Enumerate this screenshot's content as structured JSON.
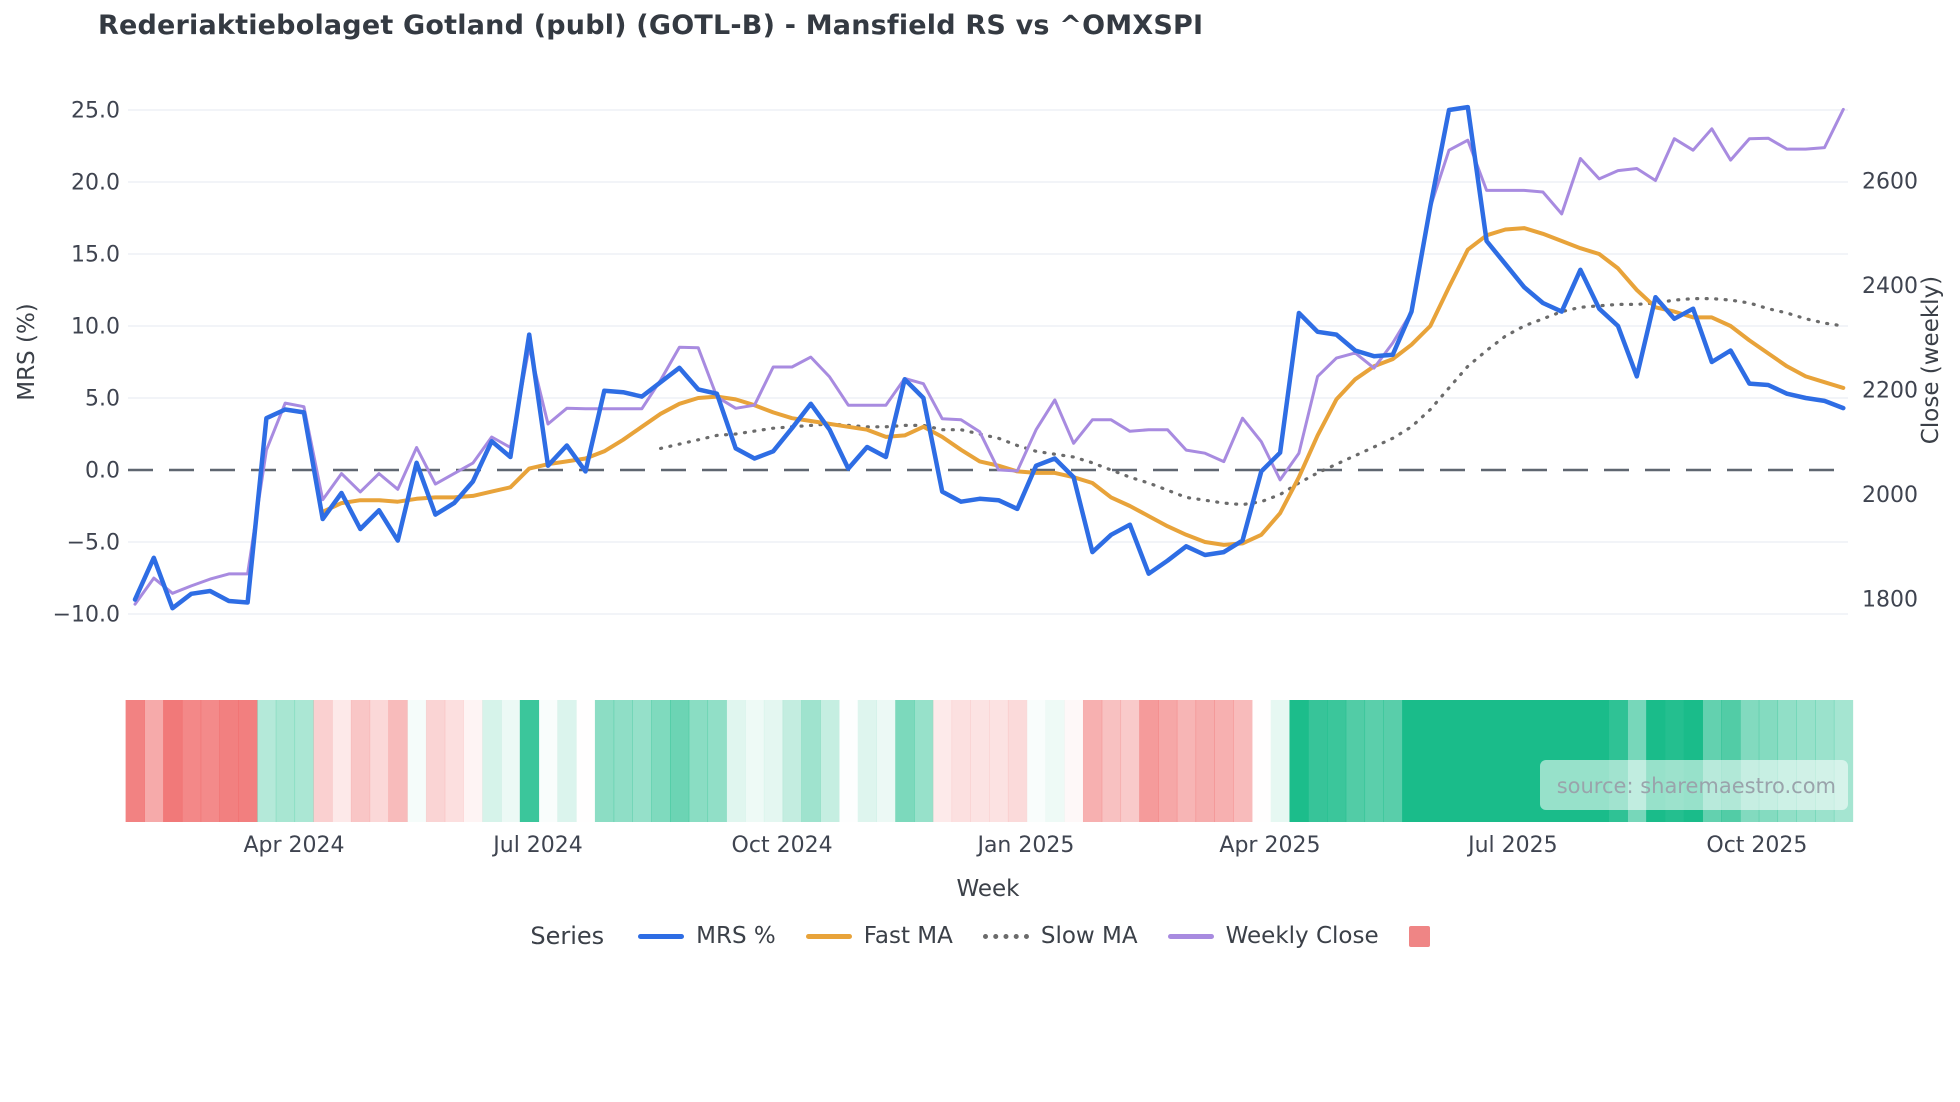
{
  "title": "Rederiaktiebolaget Gotland (publ) (GOTL-B) - Mansfield RS vs ^OMXSPI",
  "xlabel": "Week",
  "watermark": "source: sharemaestro.com",
  "legend": {
    "title": "Series",
    "items": [
      {
        "label": "MRS %",
        "swatch": "line",
        "color": "#2e6de4"
      },
      {
        "label": "Fast MA",
        "swatch": "line",
        "color": "#e8a33a"
      },
      {
        "label": "Slow MA",
        "swatch": "dotted",
        "color": "#6b6b6b"
      },
      {
        "label": "Weekly Close",
        "swatch": "line",
        "color": "#a88be0"
      },
      {
        "label": "",
        "swatch": "patch",
        "color": "#ef8585"
      }
    ]
  },
  "chart_data": {
    "type": "line",
    "title": "Rederiaktiebolaget Gotland (publ) (GOTL-B) - Mansfield RS vs ^OMXSPI",
    "xlabel": "Week",
    "x_tick_labels": [
      "Apr 2024",
      "Jul 2024",
      "Oct 2024",
      "Jan 2025",
      "Apr 2025",
      "Jul 2025",
      "Oct 2025"
    ],
    "x_tick_week_positions": [
      8.47,
      21.47,
      34.47,
      47.46,
      60.46,
      73.4,
      86.4
    ],
    "n_weeks": 92,
    "grid": true,
    "zero_line": {
      "value": 0.0,
      "style": "dashed",
      "color": "#5f6670"
    },
    "yaxis_left": {
      "label": "MRS (%)",
      "tick_values": [
        25,
        20,
        15,
        10,
        5,
        0,
        -5,
        -10
      ],
      "tick_labels": [
        "25.0",
        "20.0",
        "15.0",
        "10.0",
        "5.0",
        "0.0",
        "−5.0",
        "−10.0"
      ],
      "range": [
        -12.0,
        27.0
      ]
    },
    "yaxis_right": {
      "label": "Close (weekly)",
      "tick_values": [
        2600,
        2400,
        2200,
        2000,
        1800
      ],
      "tick_labels": [
        "2600",
        "2400",
        "2200",
        "2000",
        "1800"
      ],
      "range": [
        1655,
        2900
      ]
    },
    "series": [
      {
        "name": "MRS %",
        "axis": "left",
        "color": "#2e6de4",
        "style": "solid",
        "width": 4.5,
        "values": [
          -9.0,
          -6.1,
          -9.6,
          -8.6,
          -8.4,
          -9.1,
          -9.2,
          3.6,
          4.2,
          4.0,
          -3.4,
          -1.6,
          -4.1,
          -2.8,
          -4.9,
          0.5,
          -3.1,
          -2.3,
          -0.8,
          2.0,
          0.9,
          9.4,
          0.3,
          1.7,
          -0.1,
          5.5,
          5.4,
          5.1,
          6.1,
          7.1,
          5.6,
          5.3,
          1.5,
          0.8,
          1.3,
          2.9,
          4.6,
          2.8,
          0.1,
          1.6,
          0.9,
          6.3,
          5.0,
          -1.5,
          -2.2,
          -2.0,
          -2.1,
          -2.7,
          0.3,
          0.8,
          -0.5,
          -5.7,
          -4.5,
          -3.8,
          -7.2,
          -6.3,
          -5.3,
          -5.9,
          -5.7,
          -4.9,
          -0.1,
          1.2,
          10.9,
          9.6,
          9.4,
          8.3,
          7.9,
          8.0,
          11.0,
          18.3,
          25.0,
          25.2,
          15.9,
          14.3,
          12.7,
          11.6,
          11.0,
          13.9,
          11.2,
          10.0,
          6.5,
          12.0,
          10.5,
          11.2,
          7.5,
          8.3,
          6.0,
          5.9,
          5.3,
          5.0,
          4.8,
          4.3
        ]
      },
      {
        "name": "Fast MA",
        "axis": "left",
        "color": "#e8a33a",
        "style": "solid",
        "width": 4,
        "values": [
          null,
          null,
          null,
          null,
          null,
          null,
          null,
          null,
          null,
          null,
          -2.9,
          -2.3,
          -2.1,
          -2.1,
          -2.2,
          -2.0,
          -1.9,
          -1.9,
          -1.8,
          -1.5,
          -1.2,
          0.1,
          0.4,
          0.6,
          0.8,
          1.3,
          2.1,
          3.0,
          3.9,
          4.6,
          5.0,
          5.1,
          4.9,
          4.5,
          4.0,
          3.6,
          3.4,
          3.2,
          3.0,
          2.8,
          2.3,
          2.4,
          3.0,
          2.3,
          1.4,
          0.6,
          0.3,
          -0.1,
          -0.2,
          -0.2,
          -0.5,
          -0.9,
          -1.9,
          -2.5,
          -3.2,
          -3.9,
          -4.5,
          -5.0,
          -5.2,
          -5.1,
          -4.5,
          -3.0,
          -0.5,
          2.4,
          4.9,
          6.3,
          7.2,
          7.7,
          8.7,
          10.0,
          12.7,
          15.3,
          16.3,
          16.7,
          16.8,
          16.4,
          15.9,
          15.4,
          15.0,
          14.0,
          12.5,
          11.3,
          11.0,
          10.6,
          10.6,
          10.0,
          9.0,
          8.1,
          7.2,
          6.5,
          6.1,
          5.7
        ]
      },
      {
        "name": "Slow MA",
        "axis": "left",
        "color": "#6b6b6b",
        "style": "dotted",
        "width": 3.2,
        "values": [
          null,
          null,
          null,
          null,
          null,
          null,
          null,
          null,
          null,
          null,
          null,
          null,
          null,
          null,
          null,
          null,
          null,
          null,
          null,
          null,
          null,
          null,
          null,
          null,
          null,
          null,
          null,
          null,
          1.5,
          1.8,
          2.1,
          2.4,
          2.5,
          2.7,
          2.9,
          3.0,
          3.1,
          3.2,
          3.1,
          3.0,
          3.0,
          3.1,
          3.1,
          2.8,
          2.8,
          2.5,
          2.2,
          1.7,
          1.3,
          1.1,
          0.9,
          0.5,
          0.0,
          -0.5,
          -0.9,
          -1.4,
          -1.9,
          -2.1,
          -2.3,
          -2.4,
          -2.2,
          -1.7,
          -0.9,
          -0.2,
          0.4,
          1.0,
          1.6,
          2.2,
          3.0,
          4.2,
          5.7,
          7.2,
          8.3,
          9.3,
          10.0,
          10.5,
          11.0,
          11.3,
          11.4,
          11.5,
          11.5,
          11.6,
          11.8,
          11.9,
          11.9,
          11.8,
          11.6,
          11.2,
          10.9,
          10.5,
          10.2,
          10.0
        ]
      },
      {
        "name": "Weekly Close",
        "axis": "right",
        "color": "#a88be0",
        "style": "solid",
        "width": 3,
        "values": [
          1790,
          1840,
          1811,
          1825,
          1838,
          1848,
          1848,
          2085,
          2175,
          2168,
          1990,
          2040,
          2005,
          2040,
          2010,
          2090,
          2020,
          2040,
          2060,
          2110,
          2090,
          2282,
          2135,
          2165,
          2164,
          2164,
          2164,
          2164,
          2219,
          2282,
          2281,
          2187,
          2165,
          2171,
          2244,
          2244,
          2263,
          2225,
          2171,
          2171,
          2171,
          2222,
          2212,
          2145,
          2143,
          2120,
          2047,
          2045,
          2124,
          2181,
          2098,
          2143,
          2143,
          2121,
          2124,
          2124,
          2085,
          2079,
          2063,
          2146,
          2101,
          2028,
          2079,
          2226,
          2261,
          2271,
          2242,
          2290,
          2349,
          2550,
          2659,
          2678,
          2582,
          2582,
          2582,
          2579,
          2537,
          2643,
          2604,
          2620,
          2624,
          2601,
          2681,
          2659,
          2700,
          2640,
          2681,
          2682,
          2661,
          2661,
          2664,
          2737
        ]
      }
    ],
    "heatmap_band": {
      "description": "weekly strip below plot colored by MRS % sign/magnitude (red negative, green positive)",
      "positive_color": "#1abc8a",
      "negative_color": "#ef6666",
      "saturation_at_abs_value": 11,
      "source_series": "MRS %"
    },
    "legend_position": "bottom"
  }
}
